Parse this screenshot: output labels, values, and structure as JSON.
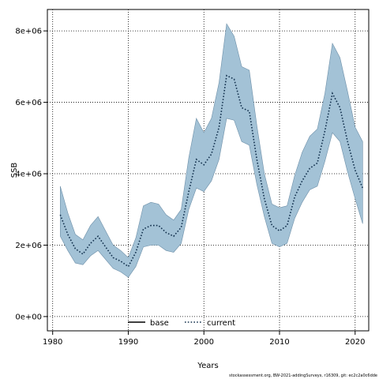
{
  "chart_data": {
    "type": "line",
    "xlabel": "Years",
    "ylabel": "SSB",
    "xlim": [
      1979.3,
      1981.5
    ],
    "ylim": [
      -400000,
      8600000
    ],
    "x_ticks": [
      1980,
      1990,
      2000,
      2010,
      2020
    ],
    "y_ticks": [
      0,
      2000000,
      4000000,
      6000000,
      8000000
    ],
    "x_tick_labels": [
      "1980",
      "1990",
      "2000",
      "2010",
      "2020"
    ],
    "y_tick_labels": [
      "0e+00",
      "2e+06",
      "4e+06",
      "6e+06",
      "8e+06"
    ],
    "grid": true,
    "legend_position": "bottom-center",
    "series": [
      {
        "name": "base",
        "style": "solid",
        "color": "#000000",
        "x": [],
        "values": []
      },
      {
        "name": "current",
        "style": "dotted",
        "color": "#1a3a5c",
        "band_color": "#a3c2d6",
        "x": [
          1981,
          1982,
          1983,
          1984,
          1985,
          1986,
          1987,
          1988,
          1989,
          1990,
          1991,
          1992,
          1993,
          1994,
          1995,
          1996,
          1997,
          1998,
          1999,
          2000,
          2001,
          2002,
          2003,
          2004,
          2005,
          2006,
          2007,
          2008,
          2009,
          2010,
          2011,
          2012,
          2013,
          2014,
          2015,
          2016,
          2017,
          2018,
          2019,
          2020,
          2021
        ],
        "values": [
          2850000,
          2300000,
          1900000,
          1750000,
          2050000,
          2250000,
          1950000,
          1650000,
          1550000,
          1400000,
          1800000,
          2450000,
          2550000,
          2550000,
          2350000,
          2250000,
          2500000,
          3500000,
          4400000,
          4250000,
          4550000,
          5300000,
          6750000,
          6650000,
          5850000,
          5750000,
          4400000,
          3300000,
          2550000,
          2400000,
          2550000,
          3350000,
          3800000,
          4150000,
          4300000,
          5200000,
          6250000,
          5850000,
          4900000,
          4100000,
          3600000
        ],
        "lower": [
          2250000,
          1850000,
          1500000,
          1450000,
          1700000,
          1850000,
          1600000,
          1350000,
          1250000,
          1100000,
          1400000,
          1950000,
          2000000,
          2000000,
          1850000,
          1800000,
          2050000,
          3000000,
          3600000,
          3500000,
          3800000,
          4400000,
          5550000,
          5500000,
          4900000,
          4800000,
          3700000,
          2800000,
          2050000,
          1950000,
          2050000,
          2750000,
          3200000,
          3550000,
          3650000,
          4350000,
          5150000,
          4900000,
          4050000,
          3300000,
          2600000
        ],
        "upper": [
          3650000,
          2900000,
          2300000,
          2150000,
          2550000,
          2800000,
          2400000,
          2000000,
          1850000,
          1650000,
          2200000,
          3100000,
          3200000,
          3150000,
          2850000,
          2700000,
          3000000,
          4450000,
          5550000,
          5150000,
          5550000,
          6550000,
          8200000,
          7850000,
          7000000,
          6900000,
          5350000,
          4000000,
          3150000,
          3050000,
          3100000,
          3950000,
          4600000,
          5050000,
          5250000,
          6250000,
          7650000,
          7250000,
          6300000,
          5300000,
          4900000
        ]
      }
    ]
  },
  "footnote": "stockassessment.org, BW-2021-addingSurveys, r16309, git: ec2c2a0c6dde"
}
